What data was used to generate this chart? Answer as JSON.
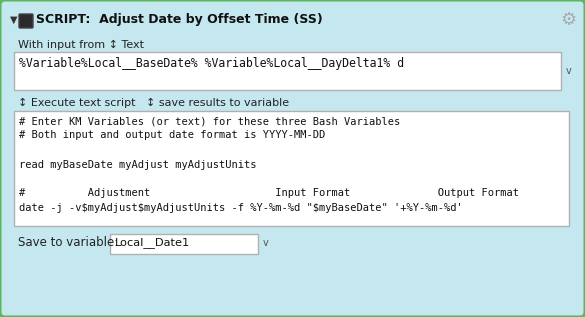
{
  "bg_color": "#9ecf9e",
  "panel_bg": "#c5e8f0",
  "title_text": "SCRIPT:  Adjust Date by Offset Time (SS)",
  "gear_color": "#aaaaaa",
  "input_label": "With input from ↕ Text",
  "input_box_text": "%Variable%Local__BaseDate% %Variable%Local__DayDelta1% d",
  "execute_label": "↕ Execute text script   ↕ save results to variable",
  "script_lines": [
    "# Enter KM Variables (or text) for these three Bash Variables",
    "# Both input and output date format is YYYY-MM-DD",
    "",
    "read myBaseDate myAdjust myAdjustUnits",
    "",
    "#          Adjustment                    Input Format              Output Format",
    "date -j -v$myAdjust$myAdjustUnits -f %Y-%m-%d \"$myBaseDate\" '+%Y-%m-%d'"
  ],
  "save_label": "Save to variable:",
  "save_var_text": "Local__Date1",
  "border_color": "#5ab85a",
  "box_border_color": "#b0b0b0",
  "text_color": "#111111",
  "mono_color": "#111111",
  "label_color": "#222222",
  "figw": 5.85,
  "figh": 3.17,
  "dpi": 100
}
